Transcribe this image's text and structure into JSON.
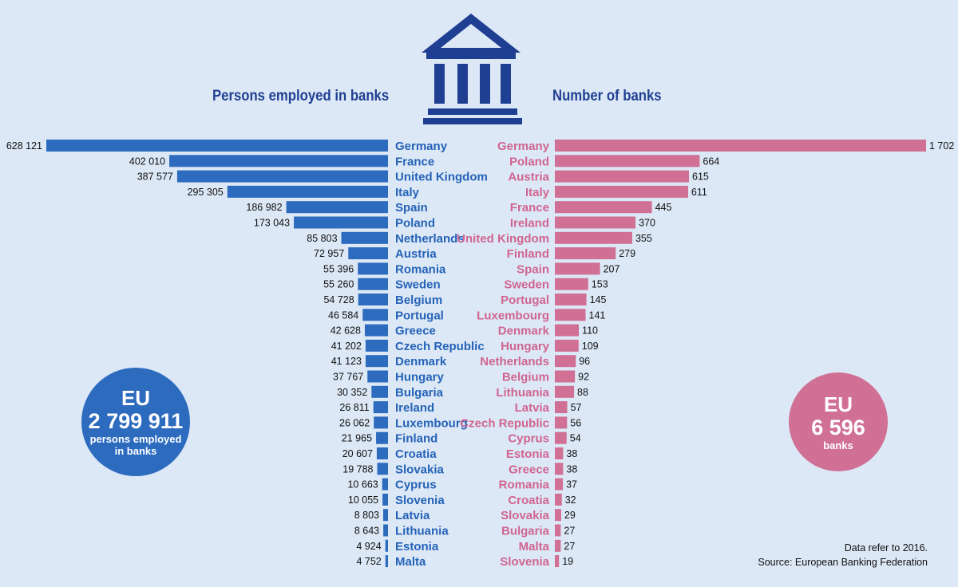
{
  "headings": {
    "left": "Persons employed in banks",
    "right": "Number of banks"
  },
  "icons": {
    "bank": "bank-building-icon"
  },
  "colors": {
    "background": "#dce8f6",
    "blue": "#2d6bbf",
    "pink": "#d07095",
    "navy": "#1f3f93"
  },
  "summary": {
    "left": {
      "title": "EU",
      "value": "2 799 911",
      "sub1": "persons employed",
      "sub2": "in banks"
    },
    "right": {
      "title": "EU",
      "value": "6 596",
      "sub1": "banks"
    }
  },
  "footnote": {
    "note": "Data refer to 2016.",
    "source": "Source: European Banking Federation"
  },
  "chart_data": [
    {
      "type": "bar",
      "orientation": "horizontal",
      "title": "Persons employed in banks",
      "categories": [
        "Germany",
        "France",
        "United Kingdom",
        "Italy",
        "Spain",
        "Poland",
        "Netherlands",
        "Austria",
        "Romania",
        "Sweden",
        "Belgium",
        "Portugal",
        "Greece",
        "Czech Republic",
        "Denmark",
        "Hungary",
        "Bulgaria",
        "Ireland",
        "Luxembourg",
        "Finland",
        "Croatia",
        "Slovakia",
        "Cyprus",
        "Slovenia",
        "Latvia",
        "Lithuania",
        "Estonia",
        "Malta"
      ],
      "values": [
        628121,
        402010,
        387577,
        295305,
        186982,
        173043,
        85803,
        72957,
        55396,
        55260,
        54728,
        46584,
        42628,
        41202,
        41123,
        37767,
        30352,
        26811,
        26062,
        21965,
        20607,
        19788,
        10663,
        10055,
        8803,
        8643,
        4924,
        4752
      ],
      "labels": [
        "628 121",
        "402 010",
        "387 577",
        "295 305",
        "186 982",
        "173 043",
        "85 803",
        "72 957",
        "55 396",
        "55 260",
        "54 728",
        "46 584",
        "42 628",
        "41 202",
        "41 123",
        "37 767",
        "30 352",
        "26 811",
        "26 062",
        "21 965",
        "20 607",
        "19 788",
        "10 663",
        "10 055",
        "8 803",
        "8 643",
        "4 924",
        "4 752"
      ],
      "xlim": [
        0,
        628121
      ],
      "grid": false
    },
    {
      "type": "bar",
      "orientation": "horizontal",
      "title": "Number of banks",
      "categories": [
        "Germany",
        "Poland",
        "Austria",
        "Italy",
        "France",
        "Ireland",
        "United Kingdom",
        "Finland",
        "Spain",
        "Sweden",
        "Portugal",
        "Luxembourg",
        "Denmark",
        "Hungary",
        "Netherlands",
        "Belgium",
        "Lithuania",
        "Latvia",
        "Czech Republic",
        "Cyprus",
        "Estonia",
        "Greece",
        "Romania",
        "Croatia",
        "Slovakia",
        "Bulgaria",
        "Malta",
        "Slovenia"
      ],
      "values": [
        1702,
        664,
        615,
        611,
        445,
        370,
        355,
        279,
        207,
        153,
        145,
        141,
        110,
        109,
        96,
        92,
        88,
        57,
        56,
        54,
        38,
        38,
        37,
        32,
        29,
        27,
        27,
        19
      ],
      "labels": [
        "1 702",
        "664",
        "615",
        "611",
        "445",
        "370",
        "355",
        "279",
        "207",
        "153",
        "145",
        "141",
        "110",
        "109",
        "96",
        "92",
        "88",
        "57",
        "56",
        "54",
        "38",
        "38",
        "37",
        "32",
        "29",
        "27",
        "27",
        "19"
      ],
      "xlim": [
        0,
        1702
      ],
      "grid": false
    }
  ]
}
